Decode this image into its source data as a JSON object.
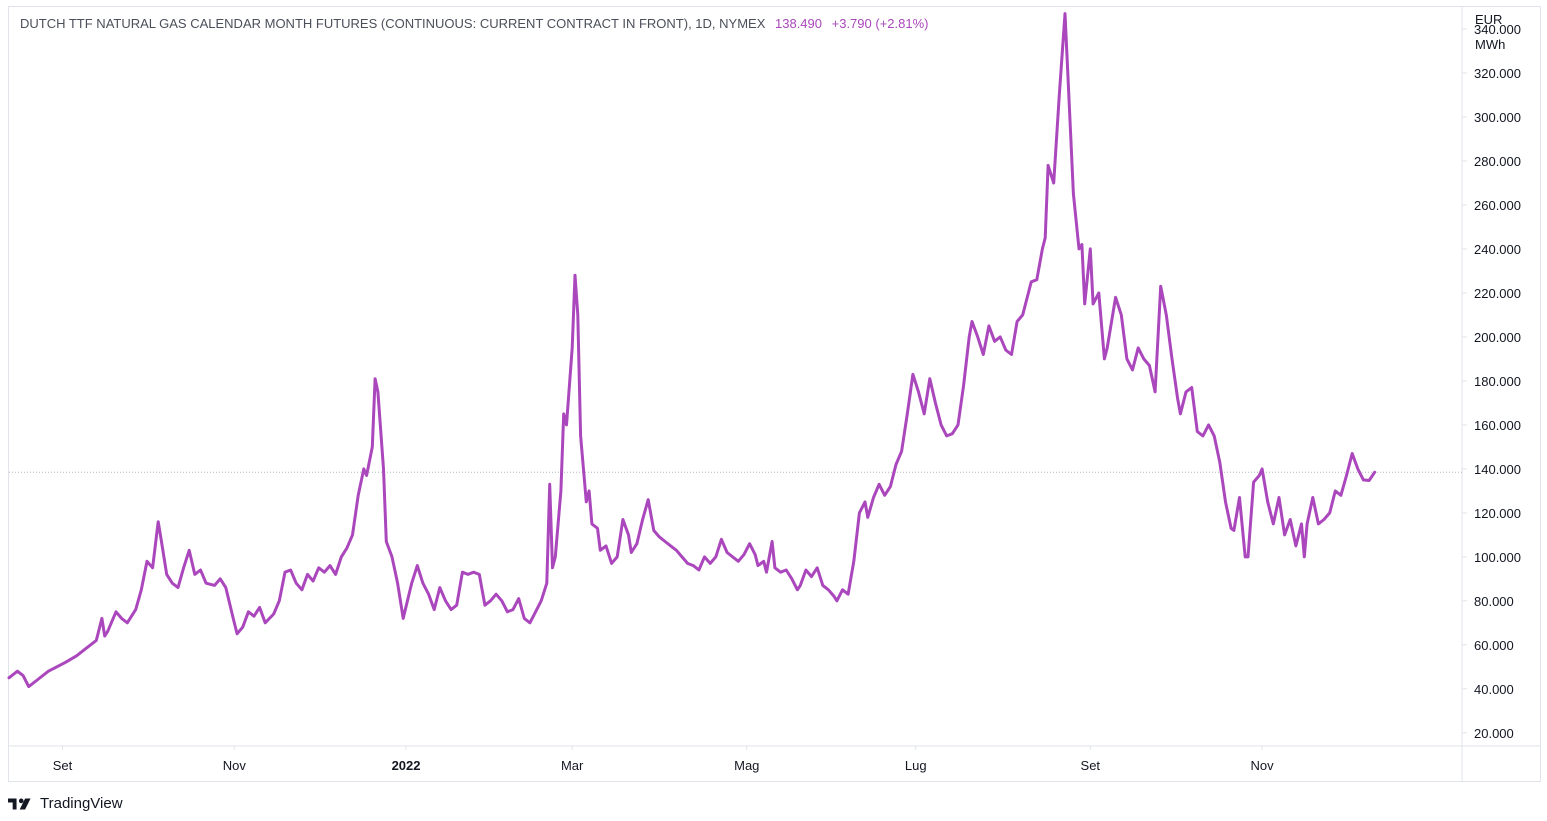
{
  "legend": {
    "symbol_text": "DUTCH TTF NATURAL GAS CALENDAR MONTH FUTURES (CONTINUOUS: CURRENT CONTRACT IN FRONT), 1D, NYMEX",
    "last_value": "138.490",
    "change": "+3.790 (+2.81%)"
  },
  "axis": {
    "unit_line1": "EUR",
    "unit_line2": "MWh"
  },
  "brand": {
    "name": "TradingView"
  },
  "colors": {
    "series": "#ab47bc",
    "grid": "#e0e3eb",
    "text": "#131722"
  },
  "chart_data": {
    "type": "line",
    "title": "DUTCH TTF NATURAL GAS CALENDAR MONTH FUTURES (CONTINUOUS: CURRENT CONTRACT IN FRONT), 1D, NYMEX",
    "ylabel": "EUR MWh",
    "ylim": [
      14,
      350
    ],
    "y_ticks": [
      "20.000",
      "40.000",
      "60.000",
      "80.000",
      "100.000",
      "120.000",
      "140.000",
      "160.000",
      "180.000",
      "200.000",
      "220.000",
      "240.000",
      "260.000",
      "280.000",
      "300.000",
      "320.000",
      "340.000"
    ],
    "x_ticks": [
      {
        "label": "Set",
        "date": "2021-09-01",
        "bold": false
      },
      {
        "label": "Nov",
        "date": "2021-11-01",
        "bold": false
      },
      {
        "label": "2022",
        "date": "2022-01-01",
        "bold": true
      },
      {
        "label": "Mar",
        "date": "2022-03-01",
        "bold": false
      },
      {
        "label": "Mag",
        "date": "2022-05-02",
        "bold": false
      },
      {
        "label": "Lug",
        "date": "2022-07-01",
        "bold": false
      },
      {
        "label": "Set",
        "date": "2022-09-01",
        "bold": false
      },
      {
        "label": "Nov",
        "date": "2022-11-01",
        "bold": false
      }
    ],
    "xlim": [
      "2021-08-13",
      "2023-01-11"
    ],
    "last_price_line": 138.49,
    "series": [
      {
        "values": [
          [
            "2021-08-13",
            45
          ],
          [
            "2021-08-16",
            48
          ],
          [
            "2021-08-18",
            46
          ],
          [
            "2021-08-20",
            41
          ],
          [
            "2021-08-23",
            44
          ],
          [
            "2021-08-25",
            46
          ],
          [
            "2021-08-27",
            48
          ],
          [
            "2021-08-30",
            50
          ],
          [
            "2021-09-02",
            52
          ],
          [
            "2021-09-06",
            55
          ],
          [
            "2021-09-09",
            58
          ],
          [
            "2021-09-13",
            62
          ],
          [
            "2021-09-15",
            72
          ],
          [
            "2021-09-16",
            64
          ],
          [
            "2021-09-17",
            66
          ],
          [
            "2021-09-20",
            75
          ],
          [
            "2021-09-22",
            72
          ],
          [
            "2021-09-24",
            70
          ],
          [
            "2021-09-27",
            76
          ],
          [
            "2021-09-29",
            85
          ],
          [
            "2021-10-01",
            98
          ],
          [
            "2021-10-03",
            95
          ],
          [
            "2021-10-05",
            116
          ],
          [
            "2021-10-06",
            108
          ],
          [
            "2021-10-08",
            92
          ],
          [
            "2021-10-10",
            88
          ],
          [
            "2021-10-12",
            86
          ],
          [
            "2021-10-14",
            95
          ],
          [
            "2021-10-16",
            103
          ],
          [
            "2021-10-18",
            92
          ],
          [
            "2021-10-20",
            94
          ],
          [
            "2021-10-22",
            88
          ],
          [
            "2021-10-25",
            87
          ],
          [
            "2021-10-27",
            90
          ],
          [
            "2021-10-29",
            86
          ],
          [
            "2021-11-01",
            70
          ],
          [
            "2021-11-02",
            65
          ],
          [
            "2021-11-04",
            68
          ],
          [
            "2021-11-06",
            75
          ],
          [
            "2021-11-08",
            73
          ],
          [
            "2021-11-10",
            77
          ],
          [
            "2021-11-12",
            70
          ],
          [
            "2021-11-15",
            74
          ],
          [
            "2021-11-17",
            80
          ],
          [
            "2021-11-19",
            93
          ],
          [
            "2021-11-21",
            94
          ],
          [
            "2021-11-23",
            88
          ],
          [
            "2021-11-25",
            85
          ],
          [
            "2021-11-27",
            92
          ],
          [
            "2021-11-29",
            89
          ],
          [
            "2021-12-01",
            95
          ],
          [
            "2021-12-03",
            93
          ],
          [
            "2021-12-05",
            96
          ],
          [
            "2021-12-07",
            92
          ],
          [
            "2021-12-09",
            100
          ],
          [
            "2021-12-11",
            104
          ],
          [
            "2021-12-13",
            110
          ],
          [
            "2021-12-15",
            128
          ],
          [
            "2021-12-17",
            140
          ],
          [
            "2021-12-18",
            137
          ],
          [
            "2021-12-20",
            150
          ],
          [
            "2021-12-21",
            181
          ],
          [
            "2021-12-22",
            175
          ],
          [
            "2021-12-24",
            140
          ],
          [
            "2021-12-25",
            107
          ],
          [
            "2021-12-27",
            100
          ],
          [
            "2021-12-29",
            88
          ],
          [
            "2021-12-31",
            72
          ],
          [
            "2022-01-03",
            88
          ],
          [
            "2022-01-05",
            96
          ],
          [
            "2022-01-07",
            88
          ],
          [
            "2022-01-09",
            83
          ],
          [
            "2022-01-11",
            76
          ],
          [
            "2022-01-13",
            86
          ],
          [
            "2022-01-15",
            80
          ],
          [
            "2022-01-17",
            76
          ],
          [
            "2022-01-19",
            78
          ],
          [
            "2022-01-21",
            93
          ],
          [
            "2022-01-23",
            92
          ],
          [
            "2022-01-25",
            93
          ],
          [
            "2022-01-27",
            92
          ],
          [
            "2022-01-29",
            78
          ],
          [
            "2022-01-31",
            80
          ],
          [
            "2022-02-02",
            83
          ],
          [
            "2022-02-04",
            80
          ],
          [
            "2022-02-06",
            75
          ],
          [
            "2022-02-08",
            76
          ],
          [
            "2022-02-10",
            81
          ],
          [
            "2022-02-12",
            72
          ],
          [
            "2022-02-14",
            70
          ],
          [
            "2022-02-16",
            75
          ],
          [
            "2022-02-18",
            80
          ],
          [
            "2022-02-20",
            88
          ],
          [
            "2022-02-21",
            133
          ],
          [
            "2022-02-22",
            95
          ],
          [
            "2022-02-23",
            100
          ],
          [
            "2022-02-25",
            130
          ],
          [
            "2022-02-26",
            165
          ],
          [
            "2022-02-27",
            160
          ],
          [
            "2022-03-01",
            195
          ],
          [
            "2022-03-02",
            228
          ],
          [
            "2022-03-03",
            210
          ],
          [
            "2022-03-04",
            155
          ],
          [
            "2022-03-06",
            125
          ],
          [
            "2022-03-07",
            130
          ],
          [
            "2022-03-08",
            115
          ],
          [
            "2022-03-10",
            113
          ],
          [
            "2022-03-11",
            103
          ],
          [
            "2022-03-13",
            105
          ],
          [
            "2022-03-15",
            97
          ],
          [
            "2022-03-17",
            100
          ],
          [
            "2022-03-19",
            117
          ],
          [
            "2022-03-21",
            110
          ],
          [
            "2022-03-22",
            102
          ],
          [
            "2022-03-24",
            106
          ],
          [
            "2022-03-26",
            117
          ],
          [
            "2022-03-28",
            126
          ],
          [
            "2022-03-30",
            112
          ],
          [
            "2022-04-01",
            109
          ],
          [
            "2022-04-03",
            107
          ],
          [
            "2022-04-05",
            105
          ],
          [
            "2022-04-07",
            103
          ],
          [
            "2022-04-09",
            100
          ],
          [
            "2022-04-11",
            97
          ],
          [
            "2022-04-13",
            96
          ],
          [
            "2022-04-15",
            94
          ],
          [
            "2022-04-17",
            100
          ],
          [
            "2022-04-19",
            97
          ],
          [
            "2022-04-21",
            100
          ],
          [
            "2022-04-23",
            108
          ],
          [
            "2022-04-25",
            102
          ],
          [
            "2022-04-27",
            100
          ],
          [
            "2022-04-29",
            98
          ],
          [
            "2022-05-01",
            101
          ],
          [
            "2022-05-03",
            106
          ],
          [
            "2022-05-05",
            101
          ],
          [
            "2022-05-06",
            96
          ],
          [
            "2022-05-08",
            98
          ],
          [
            "2022-05-09",
            93
          ],
          [
            "2022-05-11",
            107
          ],
          [
            "2022-05-12",
            95
          ],
          [
            "2022-05-14",
            93
          ],
          [
            "2022-05-16",
            94
          ],
          [
            "2022-05-18",
            90
          ],
          [
            "2022-05-20",
            85
          ],
          [
            "2022-05-21",
            87
          ],
          [
            "2022-05-23",
            94
          ],
          [
            "2022-05-25",
            91
          ],
          [
            "2022-05-27",
            95
          ],
          [
            "2022-05-29",
            87
          ],
          [
            "2022-05-31",
            85
          ],
          [
            "2022-06-02",
            82
          ],
          [
            "2022-06-03",
            80
          ],
          [
            "2022-06-05",
            85
          ],
          [
            "2022-06-07",
            83
          ],
          [
            "2022-06-09",
            98
          ],
          [
            "2022-06-11",
            120
          ],
          [
            "2022-06-13",
            125
          ],
          [
            "2022-06-14",
            118
          ],
          [
            "2022-06-16",
            127
          ],
          [
            "2022-06-18",
            133
          ],
          [
            "2022-06-20",
            128
          ],
          [
            "2022-06-22",
            132
          ],
          [
            "2022-06-24",
            142
          ],
          [
            "2022-06-26",
            148
          ],
          [
            "2022-06-28",
            165
          ],
          [
            "2022-06-30",
            183
          ],
          [
            "2022-07-02",
            175
          ],
          [
            "2022-07-04",
            165
          ],
          [
            "2022-07-06",
            181
          ],
          [
            "2022-07-08",
            170
          ],
          [
            "2022-07-10",
            160
          ],
          [
            "2022-07-12",
            155
          ],
          [
            "2022-07-14",
            156
          ],
          [
            "2022-07-16",
            160
          ],
          [
            "2022-07-18",
            178
          ],
          [
            "2022-07-20",
            200
          ],
          [
            "2022-07-21",
            207
          ],
          [
            "2022-07-23",
            200
          ],
          [
            "2022-07-25",
            192
          ],
          [
            "2022-07-27",
            205
          ],
          [
            "2022-07-29",
            198
          ],
          [
            "2022-07-31",
            200
          ],
          [
            "2022-08-02",
            194
          ],
          [
            "2022-08-04",
            192
          ],
          [
            "2022-08-06",
            207
          ],
          [
            "2022-08-08",
            210
          ],
          [
            "2022-08-10",
            220
          ],
          [
            "2022-08-11",
            225
          ],
          [
            "2022-08-13",
            226
          ],
          [
            "2022-08-15",
            240
          ],
          [
            "2022-08-16",
            245
          ],
          [
            "2022-08-17",
            278
          ],
          [
            "2022-08-19",
            270
          ],
          [
            "2022-08-20",
            290
          ],
          [
            "2022-08-21",
            310
          ],
          [
            "2022-08-23",
            347
          ],
          [
            "2022-08-24",
            320
          ],
          [
            "2022-08-26",
            265
          ],
          [
            "2022-08-28",
            240
          ],
          [
            "2022-08-29",
            242
          ],
          [
            "2022-08-30",
            215
          ],
          [
            "2022-09-01",
            240
          ],
          [
            "2022-09-02",
            215
          ],
          [
            "2022-09-04",
            220
          ],
          [
            "2022-09-06",
            190
          ],
          [
            "2022-09-07",
            195
          ],
          [
            "2022-09-10",
            218
          ],
          [
            "2022-09-12",
            210
          ],
          [
            "2022-09-14",
            190
          ],
          [
            "2022-09-16",
            185
          ],
          [
            "2022-09-18",
            195
          ],
          [
            "2022-09-20",
            190
          ],
          [
            "2022-09-22",
            187
          ],
          [
            "2022-09-24",
            175
          ],
          [
            "2022-09-26",
            223
          ],
          [
            "2022-09-28",
            210
          ],
          [
            "2022-09-30",
            190
          ],
          [
            "2022-10-02",
            172
          ],
          [
            "2022-10-03",
            165
          ],
          [
            "2022-10-05",
            175
          ],
          [
            "2022-10-07",
            177
          ],
          [
            "2022-10-09",
            157
          ],
          [
            "2022-10-11",
            155
          ],
          [
            "2022-10-13",
            160
          ],
          [
            "2022-10-15",
            155
          ],
          [
            "2022-10-17",
            143
          ],
          [
            "2022-10-19",
            125
          ],
          [
            "2022-10-21",
            113
          ],
          [
            "2022-10-22",
            112
          ],
          [
            "2022-10-24",
            127
          ],
          [
            "2022-10-26",
            100
          ],
          [
            "2022-10-27",
            100
          ],
          [
            "2022-10-29",
            134
          ],
          [
            "2022-10-31",
            137
          ],
          [
            "2022-11-01",
            140
          ],
          [
            "2022-11-03",
            125
          ],
          [
            "2022-11-05",
            115
          ],
          [
            "2022-11-07",
            127
          ],
          [
            "2022-11-09",
            110
          ],
          [
            "2022-11-11",
            117
          ],
          [
            "2022-11-13",
            105
          ],
          [
            "2022-11-15",
            115
          ],
          [
            "2022-11-16",
            100
          ],
          [
            "2022-11-17",
            115
          ],
          [
            "2022-11-19",
            127
          ],
          [
            "2022-11-21",
            115
          ],
          [
            "2022-11-23",
            117
          ],
          [
            "2022-11-25",
            120
          ],
          [
            "2022-11-27",
            130
          ],
          [
            "2022-11-29",
            128
          ],
          [
            "2022-12-01",
            137
          ],
          [
            "2022-12-03",
            147
          ],
          [
            "2022-12-05",
            140
          ],
          [
            "2022-12-07",
            135
          ],
          [
            "2022-12-09",
            134.7
          ],
          [
            "2022-12-11",
            138.49
          ]
        ]
      }
    ]
  }
}
